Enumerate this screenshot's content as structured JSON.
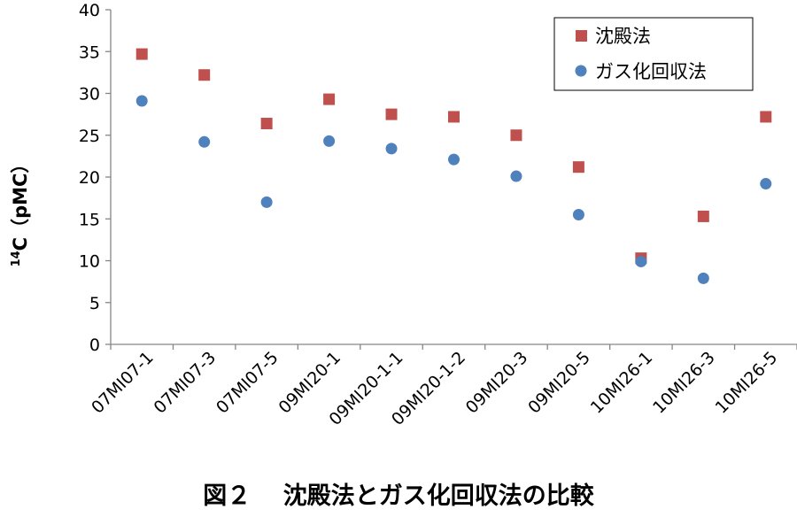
{
  "chart_data": {
    "type": "scatter",
    "categories": [
      "07MI07-1",
      "07MI07-3",
      "07MI07-5",
      "09MI20-1",
      "09MI20-1-1",
      "09MI20-1-2",
      "09MI20-3",
      "09MI20-5",
      "10MI26-1",
      "10MI26-3",
      "10MI26-5"
    ],
    "series": [
      {
        "name": "沈殿法",
        "marker": "square",
        "color": "#C0504D",
        "values": [
          34.7,
          32.2,
          26.4,
          29.3,
          27.5,
          27.2,
          25.0,
          21.2,
          10.3,
          15.3,
          27.2
        ]
      },
      {
        "name": "ガス化回収法",
        "marker": "circle",
        "color": "#4F81BD",
        "values": [
          29.1,
          24.2,
          17.0,
          24.3,
          23.4,
          22.1,
          20.1,
          15.5,
          9.9,
          7.9,
          19.2
        ]
      }
    ],
    "ylabel_sup": "14",
    "ylabel_main": "C（pMC）",
    "ylim": [
      0,
      40
    ],
    "yticks": [
      0,
      5,
      10,
      15,
      20,
      25,
      30,
      35,
      40
    ],
    "legend_position": "top-right",
    "grid": false
  },
  "caption": "図２　 沈殿法とガス化回収法の比較"
}
